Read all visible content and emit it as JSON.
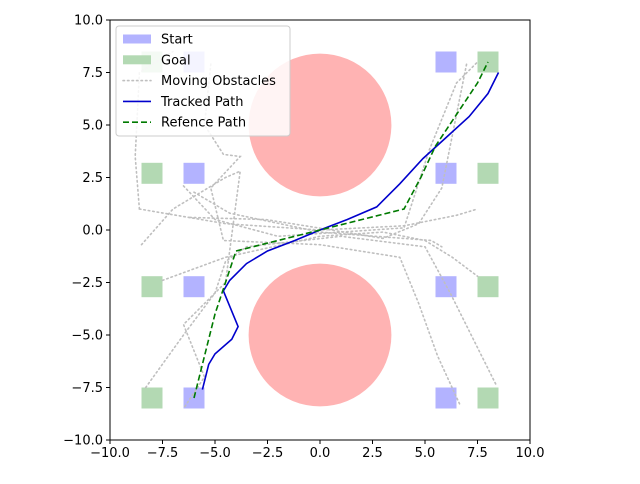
{
  "chart_data": {
    "type": "scatter",
    "xlim": [
      -10,
      10
    ],
    "ylim": [
      -10,
      10
    ],
    "ticks": [
      -10,
      -7.5,
      -5,
      -2.5,
      0,
      2.5,
      5,
      7.5,
      10
    ],
    "tick_labels": [
      "−10.0",
      "−7.5",
      "−5.0",
      "−2.5",
      "0.0",
      "2.5",
      "5.0",
      "7.5",
      "10.0"
    ],
    "grid": false,
    "legend_position": "top-left",
    "legend": [
      {
        "label": "Start",
        "kind": "patch",
        "color": "#b3b3ff"
      },
      {
        "label": "Goal",
        "kind": "patch",
        "color": "#b3d9b3"
      },
      {
        "label": "Moving Obstacles",
        "kind": "dotted",
        "color": "#bfbfbf"
      },
      {
        "label": "Tracked Path",
        "kind": "solid",
        "color": "#0000cc"
      },
      {
        "label": "Refence Path",
        "kind": "dashed",
        "color": "#007a00"
      }
    ],
    "obstacles": [
      {
        "cx": 0,
        "cy": 5,
        "r": 3.4,
        "color": "#ffb3b3"
      },
      {
        "cx": 0,
        "cy": -5,
        "r": 3.4,
        "color": "#ffb3b3"
      }
    ],
    "start_cells": [
      [
        -6,
        8
      ],
      [
        -6,
        2.7
      ],
      [
        -6,
        -2.7
      ],
      [
        -6,
        -8
      ],
      [
        6,
        8
      ],
      [
        6,
        2.7
      ],
      [
        6,
        -2.7
      ],
      [
        6,
        -8
      ]
    ],
    "goal_cells": [
      [
        -8,
        8
      ],
      [
        -8,
        2.7
      ],
      [
        -8,
        -2.7
      ],
      [
        -8,
        -8
      ],
      [
        8,
        8
      ],
      [
        8,
        2.7
      ],
      [
        8,
        -2.7
      ],
      [
        8,
        -8
      ]
    ],
    "cell_size": 1,
    "moving_obstacles": [
      [
        [
          -8.5,
          -0.7
        ],
        [
          -7,
          1
        ],
        [
          -4.5,
          2.5
        ],
        [
          -3.8,
          2.8
        ],
        [
          -4.5,
          -2.5
        ],
        [
          -6.5,
          -4.5
        ],
        [
          -5.5,
          -7
        ],
        [
          -6.5,
          -8.5
        ]
      ],
      [
        [
          -8.6,
          1
        ],
        [
          -8.8,
          3.5
        ],
        [
          -8.6,
          7.5
        ],
        [
          -7,
          8.5
        ]
      ],
      [
        [
          -8.3,
          -7.5
        ],
        [
          -6.5,
          -5
        ],
        [
          -5,
          -3
        ],
        [
          -4.5,
          -1.5
        ],
        [
          -3.5,
          -0.8
        ],
        [
          1,
          -0.3
        ],
        [
          5,
          -0.8
        ],
        [
          6.2,
          -3
        ],
        [
          7.3,
          -5.2
        ],
        [
          8.4,
          -7.4
        ]
      ],
      [
        [
          -8.6,
          1
        ],
        [
          -4.5,
          0.3
        ],
        [
          0,
          0
        ],
        [
          4,
          0.2
        ],
        [
          6.5,
          0.7
        ],
        [
          7.5,
          1
        ]
      ],
      [
        [
          -7.5,
          -2.4
        ],
        [
          -4.5,
          -1.3
        ],
        [
          0,
          -0.3
        ],
        [
          3,
          -0.1
        ],
        [
          5,
          -0.5
        ],
        [
          6.3,
          -1.3
        ],
        [
          7.5,
          -2.2
        ]
      ],
      [
        [
          -6.5,
          2.1
        ],
        [
          -5,
          0.5
        ],
        [
          -2,
          -0.3
        ],
        [
          4,
          0.1
        ],
        [
          5.2,
          3.8
        ],
        [
          6.5,
          7
        ],
        [
          7.5,
          8
        ]
      ],
      [
        [
          -5.2,
          7.9
        ],
        [
          -5.5,
          5
        ],
        [
          -4.6,
          3.6
        ],
        [
          -3.8,
          3.5
        ],
        [
          -5.2,
          2
        ],
        [
          -4.6,
          -0.5
        ],
        [
          0,
          -0.7
        ],
        [
          3.8,
          -1.3
        ],
        [
          4.7,
          -3.5
        ],
        [
          5.6,
          -6
        ],
        [
          6.7,
          -8.4
        ]
      ],
      [
        [
          -6.2,
          0.6
        ],
        [
          -2.6,
          0.5
        ],
        [
          -0.7,
          0.2
        ],
        [
          3,
          -0.4
        ],
        [
          4.7,
          0.3
        ],
        [
          5.8,
          2
        ],
        [
          7,
          8
        ]
      ],
      [
        [
          -6,
          1.8
        ],
        [
          -4.3,
          0.8
        ],
        [
          0,
          -0.1
        ],
        [
          5.3,
          -0.5
        ],
        [
          5.8,
          -0.8
        ]
      ]
    ],
    "tracked_path": {
      "x": [
        -5.6,
        -5.3,
        -5,
        -4.2,
        -3.9,
        -4.6,
        -4.3,
        -3.5,
        -2.5,
        -1.2,
        0,
        1.3,
        2.7,
        3.8,
        4.9,
        6,
        7.1,
        8,
        8.5
      ],
      "y": [
        -7.6,
        -6.4,
        -5.9,
        -5.2,
        -4.6,
        -2.9,
        -2.4,
        -1.6,
        -1,
        -0.5,
        0,
        0.5,
        1.1,
        2.2,
        3.4,
        4.4,
        5.4,
        6.5,
        7.5
      ]
    },
    "reference_path": {
      "x": [
        -6,
        -5.5,
        -5,
        -4.5,
        -4,
        -2,
        0,
        2,
        4,
        4.8,
        5.5,
        6.5,
        7.5,
        8
      ],
      "y": [
        -8,
        -6,
        -4,
        -2.5,
        -1,
        -0.5,
        0,
        0.5,
        1,
        2.5,
        4,
        5.5,
        7,
        8
      ]
    }
  }
}
